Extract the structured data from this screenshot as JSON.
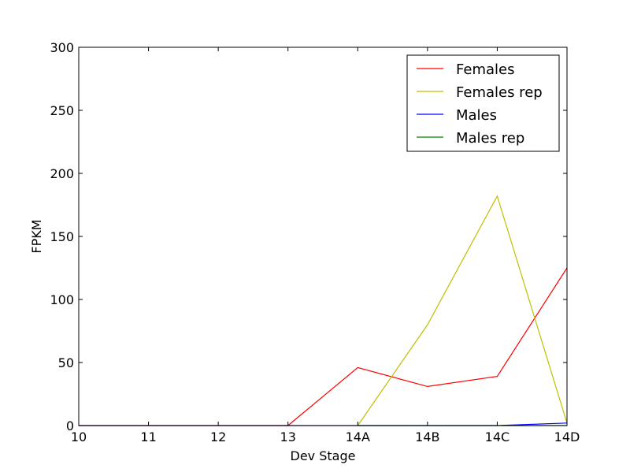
{
  "chart_data": {
    "type": "line",
    "title": "",
    "xlabel": "Dev Stage",
    "ylabel": "FPKM",
    "categories": [
      "10",
      "11",
      "12",
      "13",
      "14A",
      "14B",
      "14C",
      "14D"
    ],
    "ylim": [
      0,
      300
    ],
    "yticks": [
      "0",
      "50",
      "100",
      "150",
      "200",
      "250",
      "300"
    ],
    "grid": false,
    "legend_position": "top-right",
    "series": [
      {
        "name": "Females",
        "color": "#ff0000",
        "values": [
          0,
          0,
          0,
          0,
          46,
          31,
          39,
          125
        ]
      },
      {
        "name": "Females rep",
        "color": "#bfbf00",
        "values": [
          null,
          null,
          null,
          null,
          0,
          80,
          182,
          2
        ]
      },
      {
        "name": "Males",
        "color": "#0000ff",
        "values": [
          0,
          0,
          0,
          0,
          0,
          0,
          0,
          2
        ]
      },
      {
        "name": "Males rep",
        "color": "#008000",
        "values": [
          null,
          null,
          null,
          null,
          0,
          0,
          0,
          0
        ]
      }
    ]
  }
}
